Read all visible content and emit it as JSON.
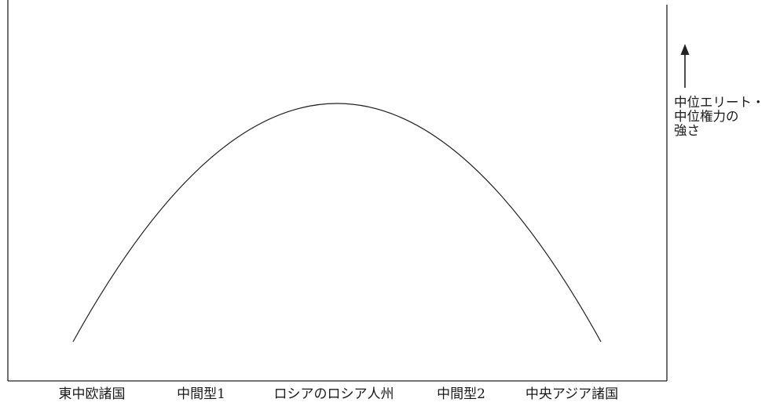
{
  "categories": [
    "東中欧諸国",
    "中間型1",
    "ロシアのロシア人州",
    "中間型2",
    "中央アジア諸国"
  ],
  "axis_caption": {
    "lines": [
      "中位エリート・",
      "中位権力の",
      "強さ"
    ]
  },
  "curve_type": "inverted-parabola",
  "colors": {
    "line": "#222222",
    "text": "#1a1a1a",
    "background": "#ffffff"
  }
}
